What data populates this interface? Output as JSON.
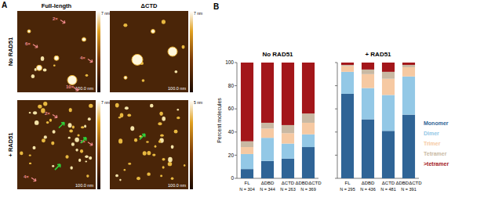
{
  "panel_a": {
    "label": "A",
    "columns": [
      "Full-length",
      "ΔCTD"
    ],
    "rows": [
      "No RAD51",
      "+ RAD51"
    ],
    "images": [
      {
        "colorbar": "7 nm",
        "scale": "100.0 nm",
        "annotations": [
          "2×",
          "6×",
          "4×",
          "10×"
        ]
      },
      {
        "colorbar": "7 nm",
        "scale": "100.0 nm",
        "annotations": []
      },
      {
        "colorbar": "7 nm",
        "scale": "100.0 nm",
        "annotations": [
          "2×",
          "1×",
          "4×"
        ]
      },
      {
        "colorbar": "5 nm",
        "scale": "100.0 nm",
        "annotations": []
      }
    ]
  },
  "panel_b": {
    "label": "B"
  },
  "chart_data": [
    {
      "type": "bar",
      "stacked": true,
      "title": "No RAD51",
      "y_label": "Percent molecules",
      "categories": [
        "FL",
        "ΔDBD",
        "ΔCTD",
        "ΔDBDΔCTD"
      ],
      "category_notes": [
        "N = 304",
        "N = 344",
        "N = 263",
        "N = 369"
      ],
      "ylim": [
        0,
        100
      ],
      "yticks": [
        0,
        20,
        40,
        60,
        80,
        100
      ],
      "series": [
        {
          "color": "#2f6496",
          "values": [
            8,
            15,
            17,
            27
          ]
        },
        {
          "color": "#93c8e6",
          "values": [
            13,
            20,
            13,
            11
          ]
        },
        {
          "color": "#f6c9a2",
          "values": [
            6,
            8,
            9,
            10
          ]
        },
        {
          "color": "#c9b9a3",
          "values": [
            5,
            5,
            7,
            8
          ]
        },
        {
          "color": "#a3161a",
          "values": [
            68,
            52,
            54,
            44
          ]
        }
      ]
    },
    {
      "type": "bar",
      "stacked": true,
      "title": "+ RAD51",
      "tick_labels": "x",
      "legend": "right",
      "categories": [
        "FL",
        "ΔDBD",
        "ΔCTD",
        "ΔDBDΔCTD"
      ],
      "category_notes": [
        "N = 295",
        "N = 436",
        "N = 481",
        "N = 391"
      ],
      "ylim": [
        0,
        100
      ],
      "yticks": [
        0,
        20,
        40,
        60,
        80,
        100
      ],
      "series": [
        {
          "name": "Monomer",
          "color": "#2f6496",
          "values": [
            73,
            51,
            41,
            55
          ]
        },
        {
          "name": "Dimer",
          "color": "#93c8e6",
          "values": [
            19,
            27,
            31,
            33
          ]
        },
        {
          "name": "Trimer",
          "color": "#f6c9a2",
          "values": [
            5,
            12,
            14,
            8
          ]
        },
        {
          "name": "Tetramer",
          "color": "#c9b9a3",
          "values": [
            1,
            4,
            6,
            2
          ]
        },
        {
          "name": ">tetramer",
          "color": "#a3161a",
          "values": [
            2,
            6,
            8,
            2
          ]
        }
      ]
    }
  ]
}
